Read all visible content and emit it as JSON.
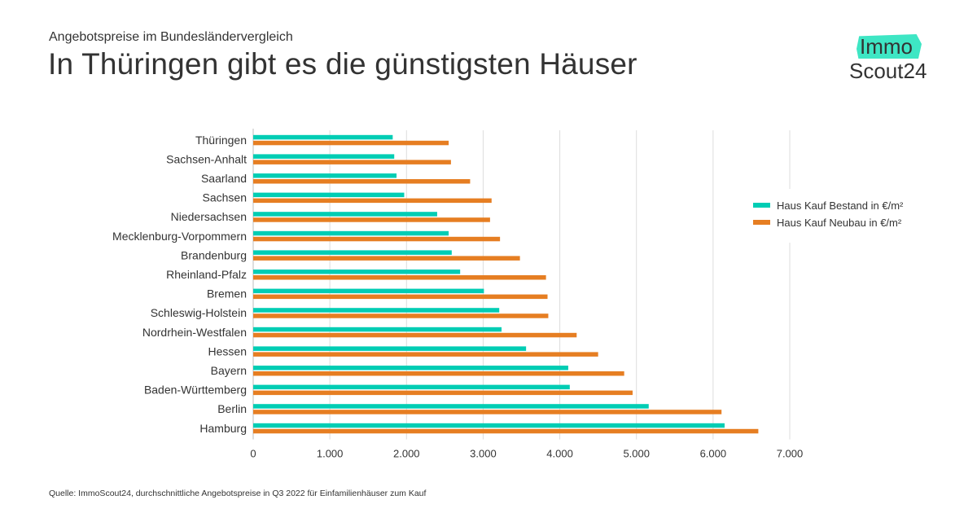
{
  "header": {
    "subtitle": "Angebotspreise im Bundesländervergleich",
    "title": "In Thüringen gibt es die günstigsten Häuser"
  },
  "logo": {
    "line1": "Immo",
    "line2": "Scout24",
    "accent_color": "#3ee6c4"
  },
  "footer": {
    "source": "Quelle: ImmoScout24, durchschnittliche Angebotspreise in Q3 2022 für Einfamilienhäuser zum Kauf"
  },
  "chart_data": {
    "type": "bar",
    "orientation": "horizontal",
    "title": "In Thüringen gibt es die günstigsten Häuser",
    "subtitle": "Angebotspreise im Bundesländervergleich",
    "xlabel": "",
    "ylabel": "",
    "xlim": [
      0,
      7000
    ],
    "xticks": [
      0,
      1000,
      2000,
      3000,
      4000,
      5000,
      6000,
      7000
    ],
    "xtick_labels": [
      "0",
      "1.000",
      "2.000",
      "3.000",
      "4.000",
      "5.000",
      "6.000",
      "7.000"
    ],
    "grid": "vertical",
    "legend_position": "right",
    "categories": [
      "Thüringen",
      "Sachsen-Anhalt",
      "Saarland",
      "Sachsen",
      "Niedersachsen",
      "Mecklenburg-Vorpommern",
      "Brandenburg",
      "Rheinland-Pfalz",
      "Bremen",
      "Schleswig-Holstein",
      "Nordrhein-Westfalen",
      "Hessen",
      "Bayern",
      "Baden-Württemberg",
      "Berlin",
      "Hamburg"
    ],
    "series": [
      {
        "name": "Haus Kauf Bestand in €/m²",
        "color": "#00cdb4",
        "values": [
          1820,
          1840,
          1870,
          1970,
          2400,
          2550,
          2590,
          2700,
          3010,
          3210,
          3240,
          3560,
          4110,
          4130,
          5160,
          6150
        ]
      },
      {
        "name": "Haus Kauf Neubau in €/m²",
        "color": "#e67e22",
        "values": [
          2550,
          2580,
          2830,
          3110,
          3090,
          3220,
          3480,
          3820,
          3840,
          3850,
          4220,
          4500,
          4840,
          4950,
          6110,
          6590
        ]
      }
    ]
  }
}
